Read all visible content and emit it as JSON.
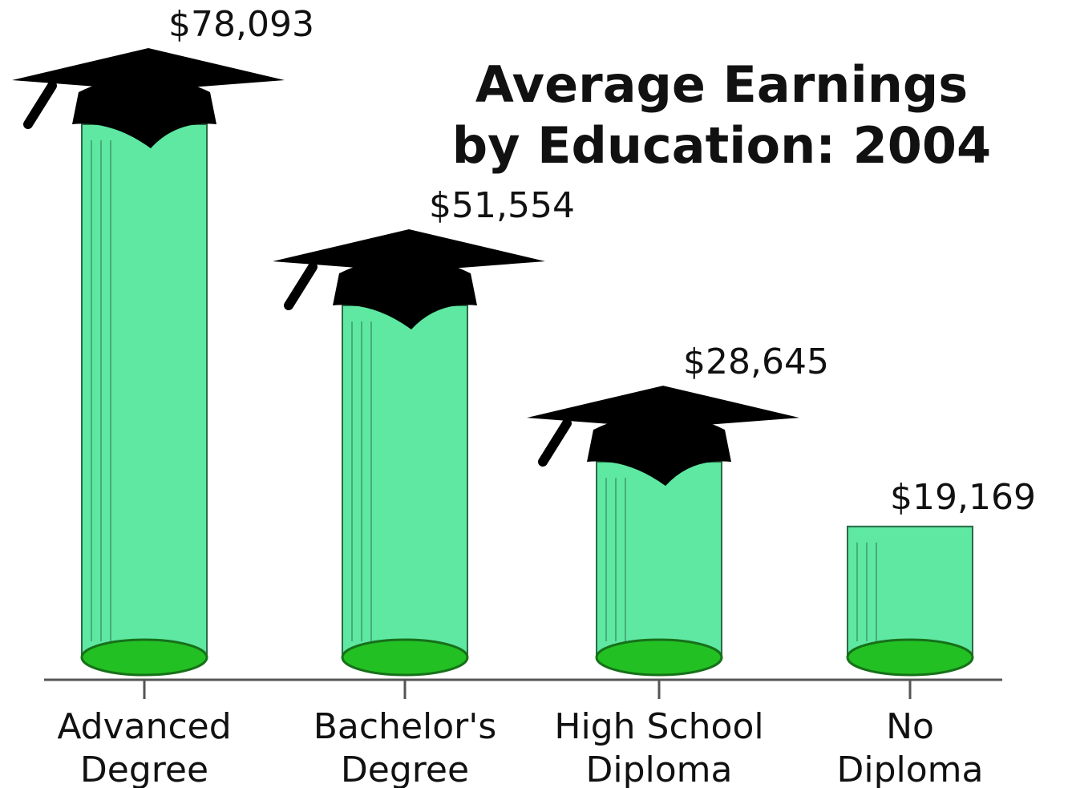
{
  "chart_data": {
    "type": "pictograph-bar",
    "title": "Average Earnings\nby Education: 2004",
    "categories": [
      "Advanced\nDegree",
      "Bachelor's\nDegree",
      "High School\nDiploma",
      "No\nDiploma"
    ],
    "values": [
      78093,
      51554,
      28645,
      19169
    ],
    "value_labels": [
      "$78,093",
      "$51,554",
      "$28,645",
      "$19,169"
    ],
    "color": "#5ee8a2",
    "graduation_caps": [
      true,
      true,
      true,
      false
    ]
  }
}
